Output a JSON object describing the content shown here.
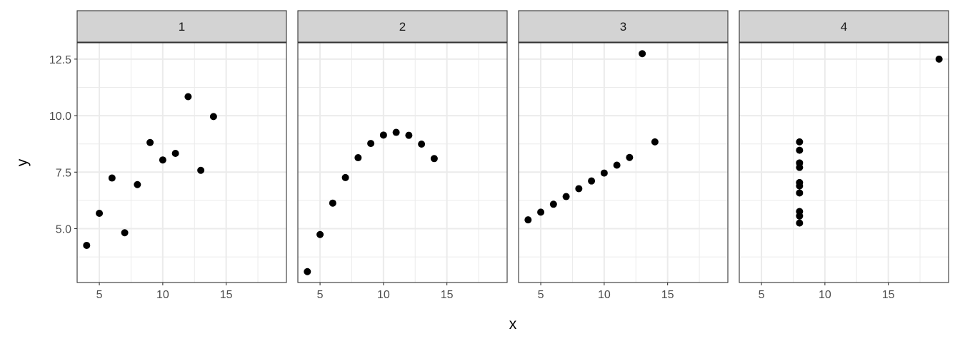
{
  "chart_data": [
    {
      "type": "scatter",
      "panel": "1",
      "x": [
        10,
        8,
        13,
        9,
        11,
        14,
        6,
        4,
        12,
        7,
        5
      ],
      "y": [
        8.04,
        6.95,
        7.58,
        8.81,
        8.33,
        9.96,
        7.24,
        4.26,
        10.84,
        4.82,
        5.68
      ]
    },
    {
      "type": "scatter",
      "panel": "2",
      "x": [
        10,
        8,
        13,
        9,
        11,
        14,
        6,
        4,
        12,
        7,
        5
      ],
      "y": [
        9.14,
        8.14,
        8.74,
        8.77,
        9.26,
        8.1,
        6.13,
        3.1,
        9.13,
        7.26,
        4.74
      ]
    },
    {
      "type": "scatter",
      "panel": "3",
      "x": [
        10,
        8,
        13,
        9,
        11,
        14,
        6,
        4,
        12,
        7,
        5
      ],
      "y": [
        7.46,
        6.77,
        12.74,
        7.11,
        7.81,
        8.84,
        6.08,
        5.39,
        8.15,
        6.42,
        5.73
      ]
    },
    {
      "type": "scatter",
      "panel": "4",
      "x": [
        8,
        8,
        8,
        8,
        8,
        8,
        8,
        19,
        8,
        8,
        8
      ],
      "y": [
        6.58,
        5.76,
        7.71,
        8.84,
        8.47,
        7.04,
        5.25,
        12.5,
        5.56,
        7.91,
        6.89
      ]
    }
  ],
  "axes": {
    "xlabel": "x",
    "ylabel": "y",
    "xlim": [
      3.25,
      19.75
    ],
    "ylim": [
      2.618,
      13.222
    ],
    "xticks": [
      5,
      10,
      15
    ],
    "xtick_labels": [
      "5",
      "10",
      "15"
    ],
    "yticks": [
      5,
      7.5,
      10,
      12.5
    ],
    "ytick_labels": [
      "5.0",
      "7.5",
      "10.0",
      "12.5"
    ],
    "grid": true,
    "shared_axes": true
  },
  "colors": {
    "point": "#000000",
    "strip": "#d3d3d3",
    "grid": "#ebebeb",
    "border": "#333333"
  }
}
